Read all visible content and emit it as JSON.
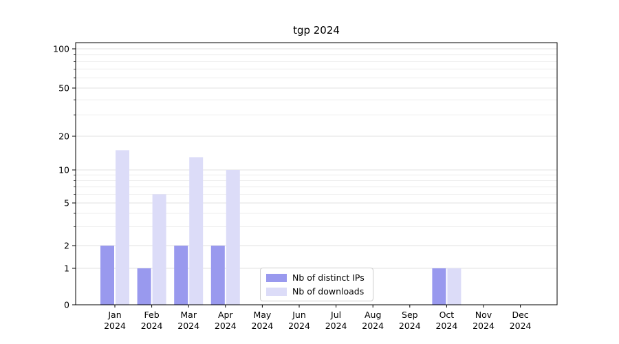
{
  "chart_data": {
    "type": "bar",
    "title": "tgp 2024",
    "year": "2024",
    "categories": [
      "Jan",
      "Feb",
      "Mar",
      "Apr",
      "May",
      "Jun",
      "Jul",
      "Aug",
      "Sep",
      "Oct",
      "Nov",
      "Dec"
    ],
    "series": [
      {
        "name": "Nb of distinct IPs",
        "color": "#9999ee",
        "values": [
          2,
          1,
          2,
          2,
          0,
          0,
          0,
          0,
          0,
          1,
          0,
          0
        ]
      },
      {
        "name": "Nb of downloads",
        "color": "#dcdcf8",
        "values": [
          15,
          6,
          13,
          10,
          0,
          0,
          0,
          0,
          0,
          1,
          0,
          0
        ]
      }
    ],
    "y_scale": "symlog",
    "y_major_ticks": [
      0,
      1,
      2,
      5,
      10,
      20,
      50,
      100
    ],
    "y_minor_ticks": [
      3,
      4,
      6,
      7,
      8,
      9,
      30,
      40,
      60,
      70,
      80,
      90
    ],
    "ylim": [
      0,
      120
    ],
    "xlabel": "",
    "ylabel": "",
    "grid": true,
    "legend": {
      "entries": [
        "Nb of distinct IPs",
        "Nb of downloads"
      ],
      "position": "lower-center-inside"
    }
  },
  "colors": {
    "bar_ips": "#9999ee",
    "bar_downloads": "#dcdcf8",
    "grid_major": "#e2e2e2",
    "grid_minor": "#ebebeb",
    "spine": "#000000",
    "background": "#ffffff",
    "legend_border": "#cccccc",
    "text": "#000000"
  }
}
